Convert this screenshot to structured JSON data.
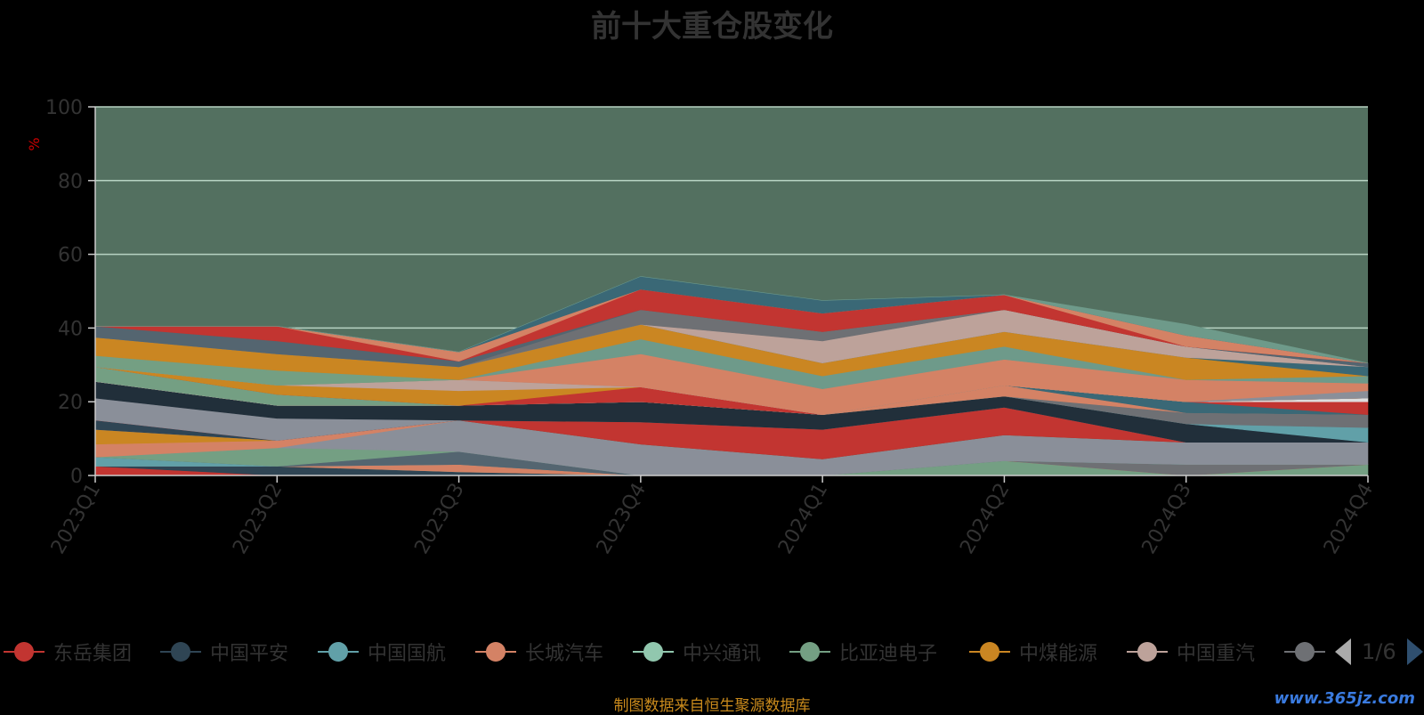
{
  "title": "前十大重仓股变化",
  "source_note": "制图数据来自恒生聚源数据库",
  "watermark": "www.365jz.com",
  "legend": {
    "items": [
      {
        "name": "东岳集团",
        "color": "#c23531"
      },
      {
        "name": "中国平安",
        "color": "#2f4554"
      },
      {
        "name": "中国国航",
        "color": "#61a0a8"
      },
      {
        "name": "长城汽车",
        "color": "#d48265"
      },
      {
        "name": "中兴通讯",
        "color": "#91c7ae"
      },
      {
        "name": "比亚迪电子",
        "color": "#749f83"
      },
      {
        "name": "中煤能源",
        "color": "#ca8622"
      },
      {
        "name": "中国重汽",
        "color": "#bda29a"
      },
      {
        "name": "",
        "color": "#6e7074"
      }
    ],
    "page": "1/6"
  },
  "colors": {
    "background": "#000000",
    "plot_background": "#537060",
    "axis": "#cccccc",
    "grid": "#b7d3c3",
    "title": "#333333",
    "ylabel": "#cc0000",
    "source": "#c98a1c"
  },
  "chart_data": {
    "type": "area",
    "stacked": true,
    "title": "前十大重仓股变化",
    "xlabel": "",
    "ylabel": "%",
    "ylim": [
      0,
      100
    ],
    "yticks": [
      0,
      20,
      40,
      60,
      80,
      100
    ],
    "grid": true,
    "legend_position": "bottom",
    "categories": [
      "2023Q1",
      "2023Q2",
      "2023Q3",
      "2023Q4",
      "2024Q1",
      "2024Q2",
      "2024Q3",
      "2024Q4"
    ],
    "series": [
      {
        "color": "#c23531",
        "values": [
          2.5,
          0,
          0,
          0,
          0,
          0,
          0,
          0
        ]
      },
      {
        "color": "#2f4554",
        "values": [
          0,
          2.5,
          1,
          0,
          0,
          0,
          0,
          0
        ]
      },
      {
        "color": "#749f83",
        "values": [
          0,
          0,
          0,
          0,
          0,
          4,
          0,
          3
        ]
      },
      {
        "color": "#d48265",
        "values": [
          0,
          0,
          2,
          0,
          0,
          0,
          0,
          0
        ]
      },
      {
        "color": "#6e7074",
        "values": [
          0,
          0,
          0,
          0,
          0,
          0,
          3,
          0
        ]
      },
      {
        "color": "#61a0a8",
        "values": [
          2.5,
          0,
          0,
          0,
          0,
          0,
          0,
          0
        ]
      },
      {
        "color": "#546570",
        "values": [
          0,
          0,
          3.5,
          0,
          0,
          0,
          0,
          0
        ]
      },
      {
        "color": "#749f83",
        "values": [
          0,
          5,
          0,
          0,
          0,
          0,
          0,
          0
        ]
      },
      {
        "color": "#8a8f99",
        "values": [
          0,
          0,
          8.5,
          8.5,
          4.5,
          7,
          6,
          6
        ]
      },
      {
        "color": "#d48265",
        "values": [
          3.5,
          2,
          0,
          0,
          0,
          0,
          0,
          0
        ]
      },
      {
        "color": "#ca8622",
        "values": [
          4,
          0,
          0,
          0,
          0,
          0,
          0,
          0
        ]
      },
      {
        "color": "#bda29a",
        "values": [
          0,
          0,
          0,
          0,
          0,
          0,
          0,
          0
        ]
      },
      {
        "color": "#2f4554",
        "values": [
          2.5,
          0,
          0,
          0,
          0,
          0,
          0,
          0
        ]
      },
      {
        "color": "#c23531",
        "values": [
          0,
          0,
          0,
          6,
          8,
          7.5,
          0,
          0
        ]
      },
      {
        "color": "#8a8f99",
        "values": [
          6,
          6,
          0,
          0,
          0,
          0,
          0,
          0
        ]
      },
      {
        "color": "#212f3a",
        "values": [
          4.5,
          3.5,
          4,
          5.5,
          4,
          3,
          5,
          0
        ]
      },
      {
        "color": "#61a0a8",
        "values": [
          0,
          0,
          0,
          0,
          0,
          0,
          0,
          4
        ]
      },
      {
        "color": "#6e7074",
        "values": [
          0,
          0,
          0,
          0,
          0,
          0,
          3,
          3.5
        ]
      },
      {
        "color": "#d48265",
        "values": [
          0,
          0,
          0,
          0,
          0,
          3,
          0,
          0
        ]
      },
      {
        "color": "#3a6876",
        "values": [
          0,
          0,
          0,
          0,
          0,
          0,
          3,
          0
        ]
      },
      {
        "color": "#c23531",
        "values": [
          0,
          0,
          0,
          0,
          0,
          0,
          0,
          3.5
        ]
      },
      {
        "color": "#dddddd",
        "values": [
          0,
          0,
          0,
          0,
          0,
          0,
          0,
          1
        ]
      },
      {
        "color": "#749f83",
        "values": [
          4,
          3,
          0,
          0,
          0,
          0,
          0,
          0
        ]
      },
      {
        "color": "#c23531",
        "values": [
          0,
          0,
          0,
          4,
          0,
          0,
          0,
          0
        ]
      },
      {
        "color": "#ca8622",
        "values": [
          0,
          2.5,
          4,
          0,
          0,
          0,
          0,
          0
        ]
      },
      {
        "color": "#bda29a",
        "values": [
          0,
          0,
          3,
          0,
          0,
          0,
          0,
          0
        ]
      },
      {
        "color": "#8a8f99",
        "values": [
          0,
          0,
          0,
          0,
          0,
          0,
          0,
          2
        ]
      },
      {
        "color": "#d48265",
        "values": [
          0,
          0,
          0,
          9,
          7,
          7,
          6,
          2
        ]
      },
      {
        "color": "#6e9a8a",
        "values": [
          0,
          0,
          0,
          4,
          3.5,
          3.5,
          0,
          2
        ]
      },
      {
        "color": "#749f83",
        "values": [
          3,
          4,
          0,
          0,
          0,
          0,
          0,
          0
        ]
      },
      {
        "color": "#ca8622",
        "values": [
          5,
          4.5,
          3.5,
          4,
          3.5,
          4,
          6,
          0
        ]
      },
      {
        "color": "#3a6876",
        "values": [
          0,
          0,
          0,
          0,
          0,
          0,
          0,
          2.5
        ]
      },
      {
        "color": "#bda29a",
        "values": [
          0,
          0,
          0,
          0,
          6,
          6,
          3,
          0
        ]
      },
      {
        "color": "#6e7074",
        "values": [
          0,
          0,
          0,
          4,
          2.5,
          0,
          0,
          0
        ]
      },
      {
        "color": "#546570",
        "values": [
          3,
          3.5,
          1.5,
          0,
          0,
          0,
          0,
          1
        ]
      },
      {
        "color": "#c23531",
        "values": [
          0,
          4,
          0,
          0,
          0,
          0,
          0,
          0
        ]
      },
      {
        "color": "#c23531",
        "values": [
          0,
          0,
          0,
          5.5,
          5,
          4,
          0,
          0
        ]
      },
      {
        "color": "#d48265",
        "values": [
          0,
          0,
          2.5,
          0,
          0,
          0,
          3,
          0
        ]
      },
      {
        "color": "#3a6876",
        "values": [
          0,
          0,
          0,
          3.5,
          3.5,
          0,
          0,
          0
        ]
      },
      {
        "color": "#6e9a8a",
        "values": [
          0,
          0,
          0,
          0,
          0,
          0,
          3,
          0
        ]
      }
    ]
  }
}
